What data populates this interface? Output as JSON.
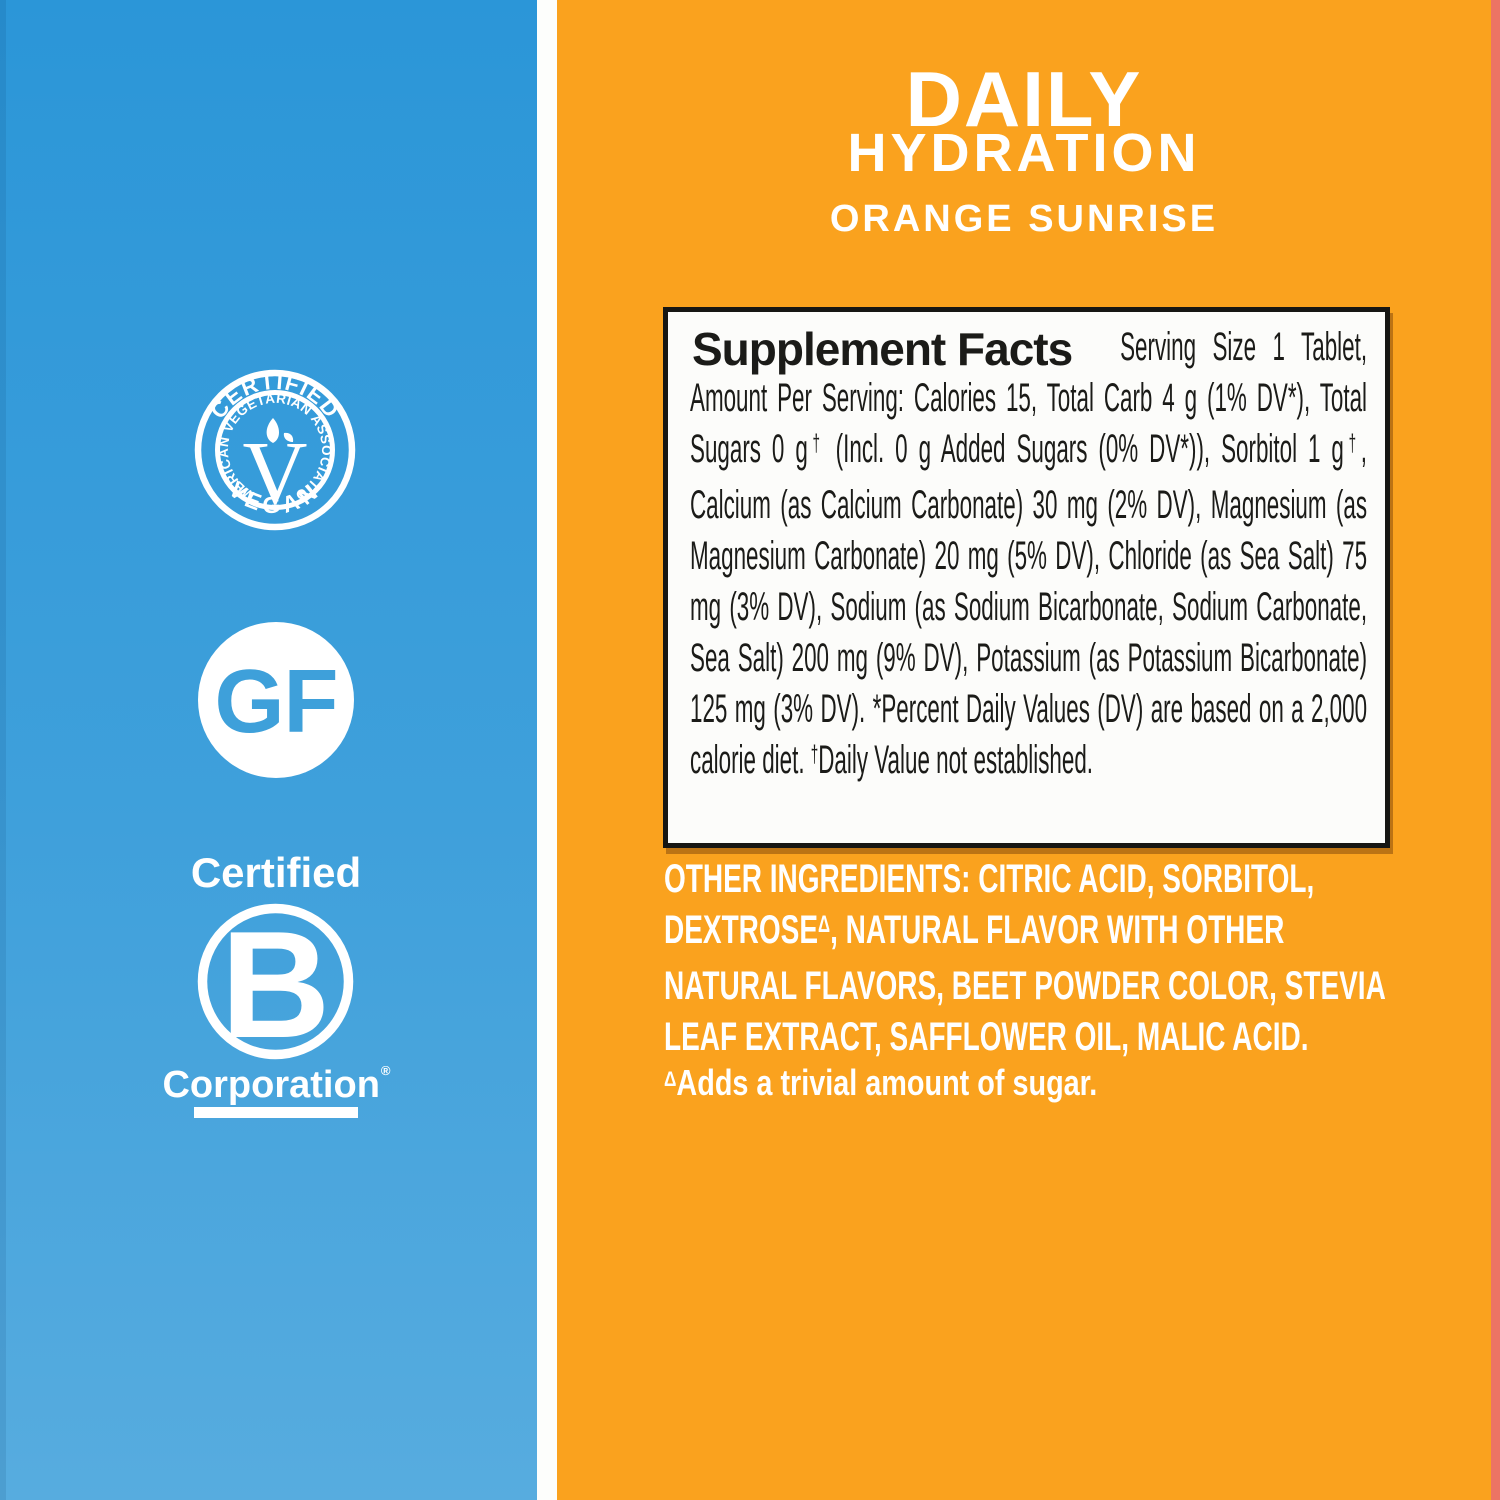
{
  "colors": {
    "blue_top": "#2B96D8",
    "blue_bottom": "#57ACDF",
    "orange": "#FAA21E",
    "salmon_edge": "#EC7464",
    "badge_letter_blue": "#3EA0DA",
    "facts_text": "#1B1B18",
    "white": "#FFFFFF"
  },
  "header": {
    "title_line1": "DAILY",
    "title_line2": "HYDRATION",
    "flavor": "ORANGE SUNRISE"
  },
  "badges": {
    "vegan": {
      "arc_top": "CERTIFIED",
      "arc_inner": "AMERICAN VEGETARIAN ASSOCIATION",
      "arc_bottom": "VEGAN",
      "center_letter": "V"
    },
    "gluten_free": {
      "label": "GF"
    },
    "b_corp": {
      "line_top": "Certified",
      "center_letter": "B",
      "line_bottom": "Corporation",
      "registered_mark": "®"
    }
  },
  "supplement_facts": {
    "heading": "Supplement Facts",
    "body_segments": [
      {
        "t": "Serving Size 1 Tablet, Amount Per Serving: Calories 15, Total Carb 4 g (1% DV*), Total Sugars 0 g"
      },
      {
        "t": "†",
        "sup": true
      },
      {
        "t": " (Incl. 0 g Added Sugars (0% DV*)), Sorbitol 1 g"
      },
      {
        "t": "†",
        "sup": true
      },
      {
        "t": ", Calcium (as Calcium Carbonate) 30 mg (2% DV), Magnesium (as Magnesium Carbonate) 20 mg (5% DV), Chloride (as Sea Salt) 75 mg (3% DV), Sodium (as Sodium Bicarbonate, Sodium Carbonate, Sea Salt) 200 mg (9% DV), Potassium (as Potassium Bicarbonate) 125 mg (3% DV). *Percent Daily Values (DV) are based on a 2,000 calorie diet. "
      },
      {
        "t": "†",
        "sup": true
      },
      {
        "t": "Daily Value not established."
      }
    ]
  },
  "other_ingredients": {
    "segments": [
      {
        "t": "OTHER INGREDIENTS:",
        "b": true
      },
      {
        "t": " CITRIC ACID, SORBITOL, DEXTROSE"
      },
      {
        "t": "Δ",
        "sup": true
      },
      {
        "t": ", NATURAL FLAVOR WITH OTHER NATURAL FLAVORS, BEET POWDER COLOR, STEVIA LEAF EXTRACT, SAFFLOWER OIL, MALIC ACID."
      }
    ],
    "footnote_segments": [
      {
        "t": "Δ",
        "sup": true
      },
      {
        "t": "Adds a trivial amount of sugar."
      }
    ]
  }
}
